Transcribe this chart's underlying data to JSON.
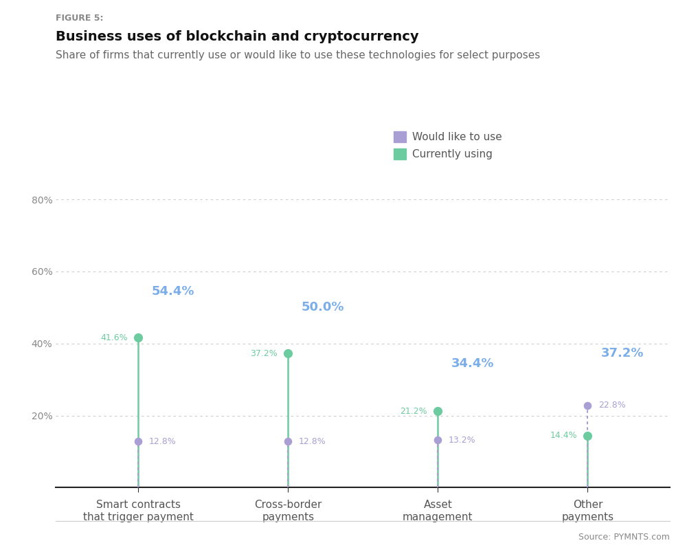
{
  "figure_label": "FIGURE 5:",
  "title": "Business uses of blockchain and cryptocurrency",
  "subtitle": "Share of firms that currently use or would like to use these technologies for select purposes",
  "source": "Source: PYMNTS.com",
  "categories": [
    "Smart contracts\nthat trigger payment",
    "Cross-border\npayments",
    "Asset\nmanagement",
    "Other\npayments"
  ],
  "would_like_values": [
    54.4,
    50.0,
    34.4,
    37.2
  ],
  "would_like_dot_values": [
    12.8,
    12.8,
    13.2,
    22.8
  ],
  "currently_values": [
    41.6,
    37.2,
    21.2,
    14.4
  ],
  "would_like_color": "#a99fd4",
  "currently_color": "#6dcba0",
  "would_like_label_color": "#7baee8",
  "would_like_dot_label_color": "#a99fd4",
  "currently_label_color": "#6dcba0",
  "legend_would_like": "Would like to use",
  "legend_currently": "Currently using",
  "ylim": [
    0,
    80
  ],
  "yticks": [
    20,
    40,
    60,
    80
  ],
  "background_color": "#ffffff",
  "grid_color": "#cccccc"
}
